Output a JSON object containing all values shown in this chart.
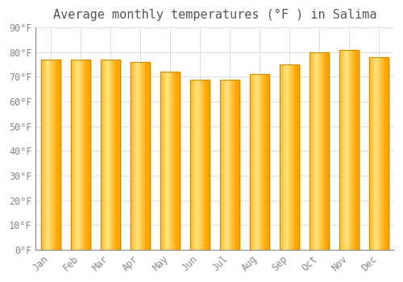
{
  "title": "Average monthly temperatures (°F ) in Salima",
  "months": [
    "Jan",
    "Feb",
    "Mar",
    "Apr",
    "May",
    "Jun",
    "Jul",
    "Aug",
    "Sep",
    "Oct",
    "Nov",
    "Dec"
  ],
  "values": [
    77,
    77,
    77,
    76,
    72,
    69,
    69,
    71,
    75,
    80,
    81,
    78
  ],
  "bar_color_main": "#FFA500",
  "bar_color_highlight": "#FFE680",
  "bar_edge_color": "#CC8800",
  "background_color": "#FFFFFF",
  "plot_bg_color": "#FFFFFF",
  "grid_color": "#DDDDDD",
  "ylim": [
    0,
    90
  ],
  "yticks": [
    0,
    10,
    20,
    30,
    40,
    50,
    60,
    70,
    80,
    90
  ],
  "title_fontsize": 11,
  "tick_fontsize": 8.5,
  "bar_width": 0.65,
  "tick_color": "#888888",
  "spine_color": "#888888"
}
